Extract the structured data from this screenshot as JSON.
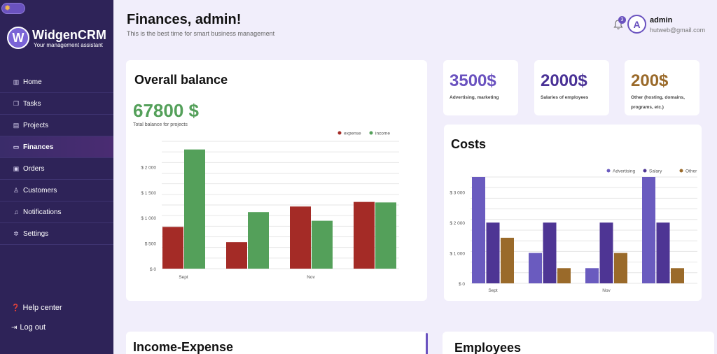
{
  "sidebar": {
    "brand": {
      "letter": "W",
      "name": "WidgenCRM",
      "tagline": "Your management assistant"
    },
    "items": [
      {
        "label": "Home",
        "icon": "home-icon",
        "glyph": "▥"
      },
      {
        "label": "Tasks",
        "icon": "tasks-icon",
        "glyph": "❐"
      },
      {
        "label": "Projects",
        "icon": "projects-icon",
        "glyph": "▤"
      },
      {
        "label": "Finances",
        "icon": "folder-icon",
        "glyph": "▭"
      },
      {
        "label": "Orders",
        "icon": "orders-icon",
        "glyph": "▣"
      },
      {
        "label": "Customers",
        "icon": "user-icon",
        "glyph": "♙"
      },
      {
        "label": "Notifications",
        "icon": "bell-icon",
        "glyph": "♫"
      },
      {
        "label": "Settings",
        "icon": "gear-icon",
        "glyph": "✲"
      }
    ],
    "active": "Finances",
    "help": "Help center",
    "logout": "Log out"
  },
  "header": {
    "title": "Finances, admin!",
    "subtitle": "This is the best time for smart business management",
    "notification_count": "3",
    "avatar_letter": "A",
    "user_name": "admin",
    "user_email": "hutweb@gmail.com"
  },
  "balance": {
    "title": "Overall balance",
    "value": "67800 $",
    "label": "Total balance for projects"
  },
  "stats": [
    {
      "value": "3500$",
      "label": "Advertising, marketing",
      "color": "#6a52bf"
    },
    {
      "value": "2000$",
      "label": "Salaries of employees",
      "color": "#4a3296"
    },
    {
      "value": "200$",
      "label": "Other (hosting, domains, programs, etc.)",
      "color": "#9a6a2a"
    }
  ],
  "costs": {
    "title": "Costs"
  },
  "income_expense": {
    "title": "Income-Expense"
  },
  "employees": {
    "title": "Employees"
  },
  "chart_data": [
    {
      "type": "bar",
      "categories": [
        "Sept",
        "",
        "Nov",
        ""
      ],
      "series": [
        {
          "name": "expense",
          "values": [
            820,
            520,
            1220,
            1310
          ],
          "color": "#a42b26"
        },
        {
          "name": "income",
          "values": [
            2340,
            1110,
            940,
            1300
          ],
          "color": "#54a05a"
        }
      ],
      "ylim": [
        0,
        2500
      ],
      "yticks": [
        0,
        500,
        1000,
        1500,
        2000
      ],
      "ytick_labels": [
        "$ 0",
        "$ 500",
        "$ 1 000",
        "$ 1 500",
        "$ 2 000"
      ],
      "legend": "top-right",
      "grid": true
    },
    {
      "type": "bar",
      "categories": [
        "Sept",
        "",
        "Nov",
        ""
      ],
      "series": [
        {
          "name": "Advertising",
          "values": [
            3500,
            1000,
            500,
            3500
          ],
          "color": "#6a5bbf"
        },
        {
          "name": "Salary",
          "values": [
            2000,
            2000,
            2000,
            2000
          ],
          "color": "#4e3594"
        },
        {
          "name": "Other",
          "values": [
            1500,
            500,
            1000,
            500
          ],
          "color": "#9a6a2a"
        }
      ],
      "ylim": [
        0,
        3500
      ],
      "yticks": [
        0,
        1000,
        2000,
        3000
      ],
      "ytick_labels": [
        "$ 0",
        "$ 1 000",
        "$ 2 000",
        "$ 3 000"
      ],
      "legend": "top-right",
      "grid": true
    }
  ]
}
